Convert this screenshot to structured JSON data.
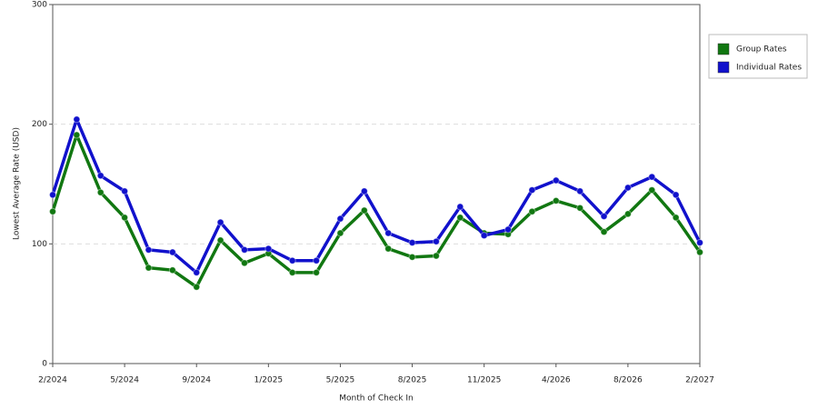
{
  "chart_data": {
    "type": "line",
    "x_label": "Month of Check In",
    "y_label": "Lowest Average Rate (USD)",
    "categories": [
      "2/2024",
      null,
      null,
      "5/2024",
      null,
      null,
      "9/2024",
      null,
      null,
      "1/2025",
      null,
      null,
      "5/2025",
      null,
      null,
      "8/2025",
      null,
      null,
      "11/2025",
      null,
      null,
      "4/2026",
      null,
      null,
      "8/2026",
      null,
      null,
      "2/2027"
    ],
    "series": [
      {
        "name": "Group Rates",
        "color": "#117711",
        "values": [
          127,
          191,
          143,
          122,
          80,
          78,
          64,
          103,
          84,
          92,
          76,
          76,
          109,
          128,
          96,
          89,
          90,
          122,
          109,
          108,
          127,
          136,
          130,
          110,
          125,
          145,
          122,
          93
        ]
      },
      {
        "name": "Individual Rates",
        "color": "#1111cc",
        "values": [
          141,
          204,
          157,
          144,
          95,
          93,
          76,
          118,
          95,
          96,
          86,
          86,
          121,
          144,
          109,
          101,
          102,
          131,
          107,
          112,
          145,
          153,
          144,
          123,
          147,
          156,
          141,
          101
        ]
      }
    ],
    "ylim": [
      0,
      300
    ],
    "yticks": [
      0,
      100,
      200,
      300
    ],
    "grid": true,
    "legend": "right"
  }
}
